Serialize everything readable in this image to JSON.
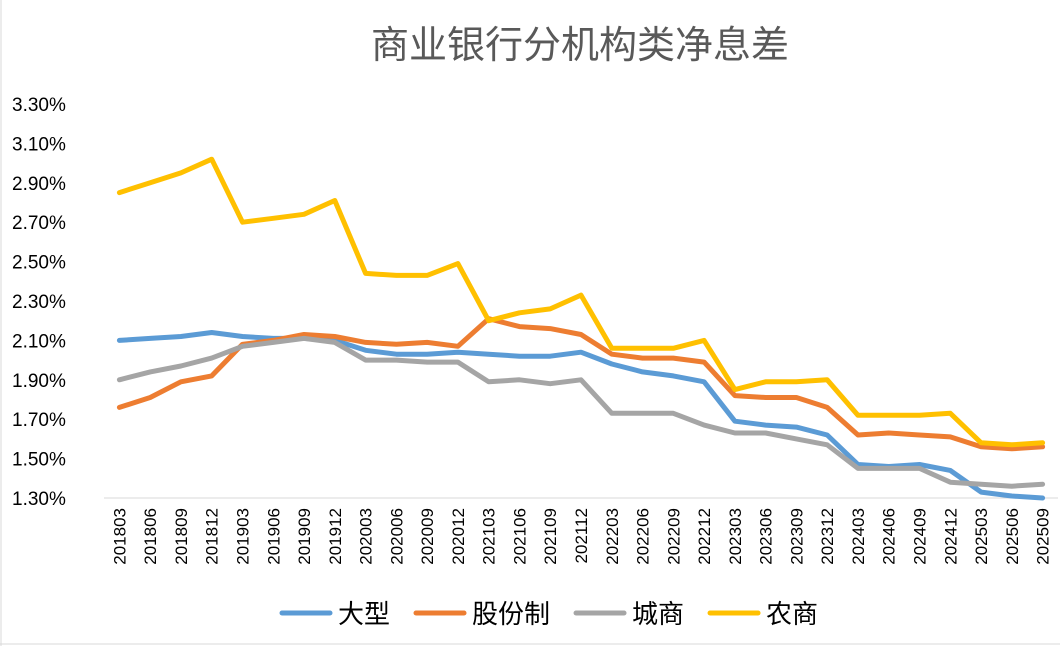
{
  "chart_data": {
    "type": "line",
    "title": "商业银行分机构类净息差",
    "xlabel": "",
    "ylabel": "",
    "ylim": [
      1.3,
      3.3
    ],
    "yticks": [
      1.3,
      1.5,
      1.7,
      1.9,
      2.1,
      2.3,
      2.5,
      2.7,
      2.9,
      3.1,
      3.3
    ],
    "ytick_labels": [
      "1.30%",
      "1.50%",
      "1.70%",
      "1.90%",
      "2.10%",
      "2.30%",
      "2.50%",
      "2.70%",
      "2.90%",
      "3.10%",
      "3.30%"
    ],
    "grid": false,
    "legend_position": "bottom",
    "categories": [
      "201803",
      "201806",
      "201809",
      "201812",
      "201903",
      "201906",
      "201909",
      "201912",
      "202003",
      "202006",
      "202009",
      "202012",
      "202103",
      "202106",
      "202109",
      "202112",
      "202203",
      "202206",
      "202209",
      "202212",
      "202303",
      "202306",
      "202309",
      "202312",
      "202403",
      "202406",
      "202409",
      "202412",
      "202503",
      "202506",
      "202509"
    ],
    "series": [
      {
        "name": "大型",
        "color": "#5b9bd5",
        "values": [
          2.1,
          2.11,
          2.12,
          2.14,
          2.12,
          2.11,
          2.11,
          2.1,
          2.05,
          2.03,
          2.03,
          2.04,
          2.03,
          2.02,
          2.02,
          2.04,
          1.98,
          1.94,
          1.92,
          1.89,
          1.69,
          1.67,
          1.66,
          1.62,
          1.47,
          1.46,
          1.47,
          1.44,
          1.33,
          1.31,
          1.3
        ]
      },
      {
        "name": "股份制",
        "color": "#ed7d31",
        "values": [
          1.76,
          1.81,
          1.89,
          1.92,
          2.08,
          2.1,
          2.13,
          2.12,
          2.09,
          2.08,
          2.09,
          2.07,
          2.21,
          2.17,
          2.16,
          2.13,
          2.03,
          2.01,
          2.01,
          1.99,
          1.82,
          1.81,
          1.81,
          1.76,
          1.62,
          1.63,
          1.62,
          1.61,
          1.56,
          1.55,
          1.56
        ]
      },
      {
        "name": "城商",
        "color": "#a5a5a5",
        "values": [
          1.9,
          1.94,
          1.97,
          2.01,
          2.07,
          2.09,
          2.11,
          2.09,
          2.0,
          2.0,
          1.99,
          1.99,
          1.89,
          1.9,
          1.88,
          1.9,
          1.73,
          1.73,
          1.73,
          1.67,
          1.63,
          1.63,
          1.6,
          1.57,
          1.45,
          1.45,
          1.45,
          1.38,
          1.37,
          1.36,
          1.37
        ]
      },
      {
        "name": "农商",
        "color": "#ffc000",
        "values": [
          2.85,
          2.9,
          2.95,
          3.02,
          2.7,
          2.72,
          2.74,
          2.81,
          2.44,
          2.43,
          2.43,
          2.49,
          2.2,
          2.24,
          2.26,
          2.33,
          2.06,
          2.06,
          2.06,
          2.1,
          1.85,
          1.89,
          1.89,
          1.9,
          1.72,
          1.72,
          1.72,
          1.73,
          1.58,
          1.57,
          1.58
        ]
      }
    ]
  }
}
